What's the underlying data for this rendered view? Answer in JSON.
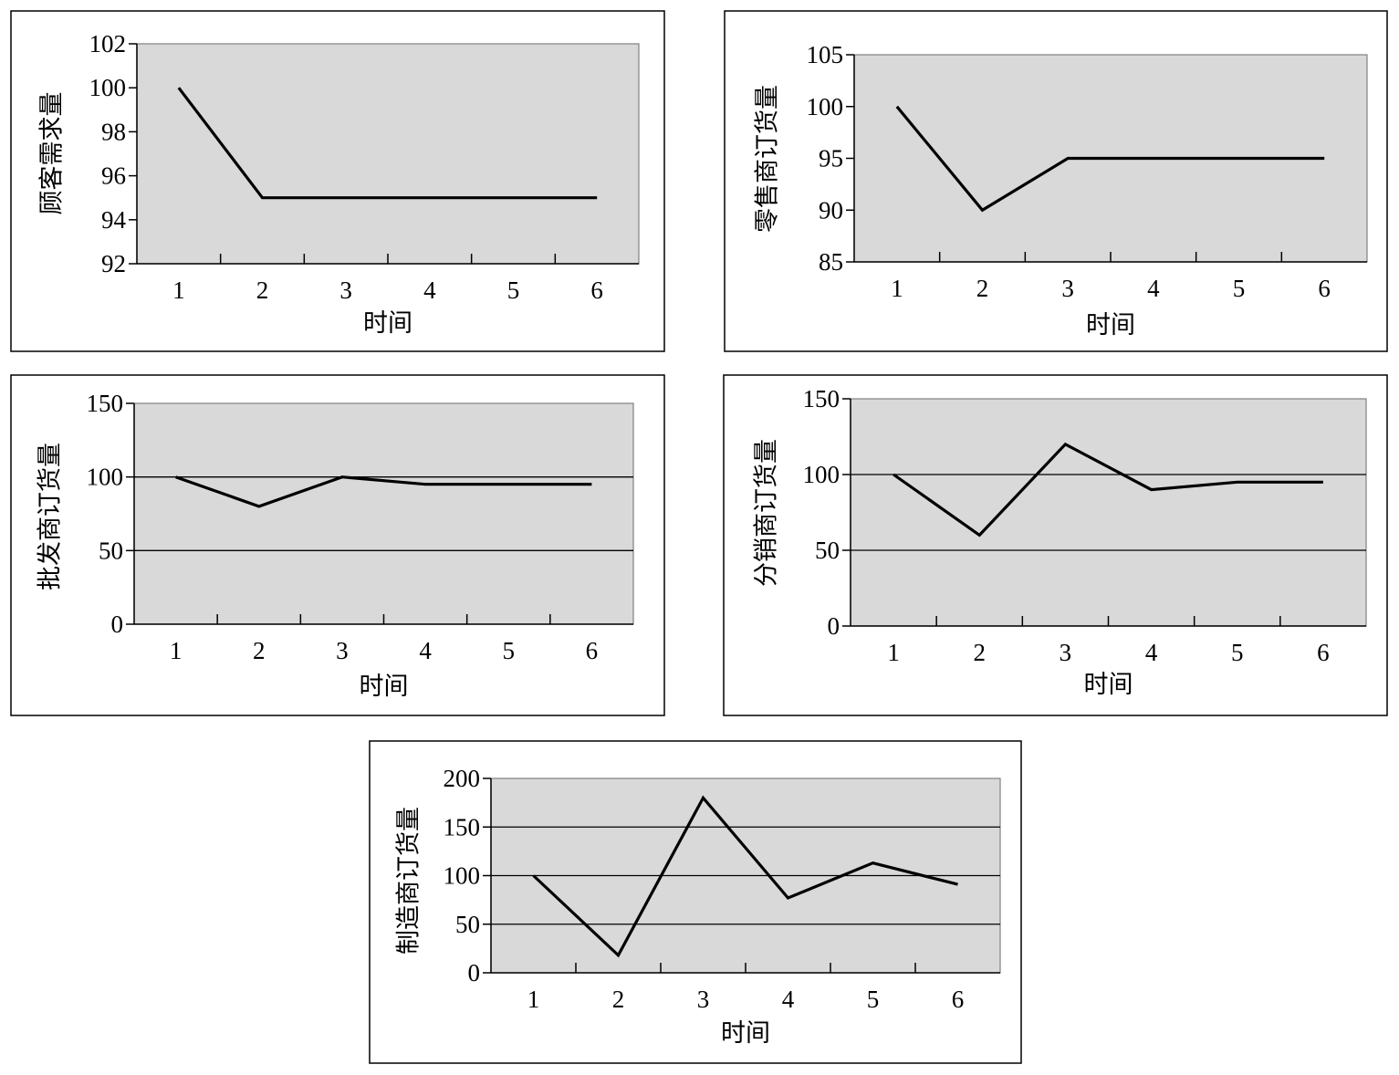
{
  "chart_data": [
    {
      "type": "line",
      "categories": [
        "1",
        "2",
        "3",
        "4",
        "5",
        "6"
      ],
      "series": [
        {
          "values": [
            100,
            95,
            95,
            95,
            95,
            95
          ],
          "color": "#000000"
        }
      ],
      "xlabel": "时间",
      "ylabel": "顾客需求量",
      "ylim": [
        92,
        102
      ],
      "yticks": [
        92,
        94,
        96,
        98,
        100,
        102
      ],
      "grid": false,
      "background": "#d9d9d9"
    },
    {
      "type": "line",
      "categories": [
        "1",
        "2",
        "3",
        "4",
        "5",
        "6"
      ],
      "series": [
        {
          "values": [
            100,
            90,
            95,
            95,
            95,
            95
          ],
          "color": "#000000"
        }
      ],
      "xlabel": "时间",
      "ylabel": "零售商订货量",
      "ylim": [
        85,
        105
      ],
      "yticks": [
        85,
        90,
        95,
        100,
        105
      ],
      "grid": false,
      "background": "#d9d9d9"
    },
    {
      "type": "line",
      "categories": [
        "1",
        "2",
        "3",
        "4",
        "5",
        "6"
      ],
      "series": [
        {
          "values": [
            100,
            80,
            100,
            95,
            95,
            95
          ],
          "color": "#000000"
        }
      ],
      "xlabel": "时间",
      "ylabel": "批发商订货量",
      "ylim": [
        0,
        150
      ],
      "yticks": [
        0,
        50,
        100,
        150
      ],
      "grid": true,
      "background": "#d9d9d9"
    },
    {
      "type": "line",
      "categories": [
        "1",
        "2",
        "3",
        "4",
        "5",
        "6"
      ],
      "series": [
        {
          "values": [
            100,
            60,
            120,
            90,
            95,
            95
          ],
          "color": "#000000"
        }
      ],
      "xlabel": "时间",
      "ylabel": "分销商订货量",
      "ylim": [
        0,
        150
      ],
      "yticks": [
        0,
        50,
        100,
        150
      ],
      "grid": true,
      "background": "#d9d9d9"
    },
    {
      "type": "line",
      "categories": [
        "1",
        "2",
        "3",
        "4",
        "5",
        "6"
      ],
      "series": [
        {
          "values": [
            100,
            18,
            180,
            77,
            113,
            91
          ],
          "color": "#000000"
        }
      ],
      "xlabel": "时间",
      "ylabel": "制造商订货量",
      "ylim": [
        0,
        200
      ],
      "yticks": [
        0,
        50,
        100,
        150,
        200
      ],
      "grid": true,
      "background": "#d9d9d9"
    }
  ]
}
